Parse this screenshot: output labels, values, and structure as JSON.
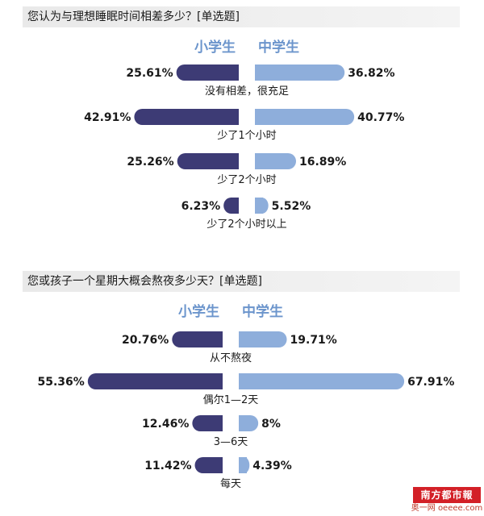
{
  "colors": {
    "primary": "#3d3b75",
    "middle": "#8eaedb",
    "legend_text": "#6c95cc"
  },
  "chart_data": [
    {
      "type": "bar",
      "title": "您认为与理想睡眠时间相差多少？[单选题]",
      "legend": [
        "小学生",
        "中学生"
      ],
      "categories": [
        "没有相差，很充足",
        "少了1个小时",
        "少了2个小时",
        "少了2个小时以上"
      ],
      "series": [
        {
          "name": "小学生",
          "values": [
            25.61,
            42.91,
            25.26,
            6.23
          ],
          "labels": [
            "25.61%",
            "42.91%",
            "25.26%",
            "6.23%"
          ]
        },
        {
          "name": "中学生",
          "values": [
            36.82,
            40.77,
            16.89,
            5.52
          ],
          "labels": [
            "36.82%",
            "40.77%",
            "16.89%",
            "5.52%"
          ]
        }
      ]
    },
    {
      "type": "bar",
      "title": "您或孩子一个星期大概会熬夜多少天？[单选题]",
      "legend": [
        "小学生",
        "中学生"
      ],
      "categories": [
        "从不熬夜",
        "偶尔1—2天",
        "3—6天",
        "每天"
      ],
      "series": [
        {
          "name": "小学生",
          "values": [
            20.76,
            55.36,
            12.46,
            11.42
          ],
          "labels": [
            "20.76%",
            "55.36%",
            "12.46%",
            "11.42%"
          ]
        },
        {
          "name": "中学生",
          "values": [
            19.71,
            67.91,
            8,
            4.39
          ],
          "labels": [
            "19.71%",
            "67.91%",
            "8%",
            "4.39%"
          ]
        }
      ]
    }
  ],
  "footer": {
    "logo_text": "南方都市報",
    "watermark": "奥一网 oeeee.com"
  }
}
